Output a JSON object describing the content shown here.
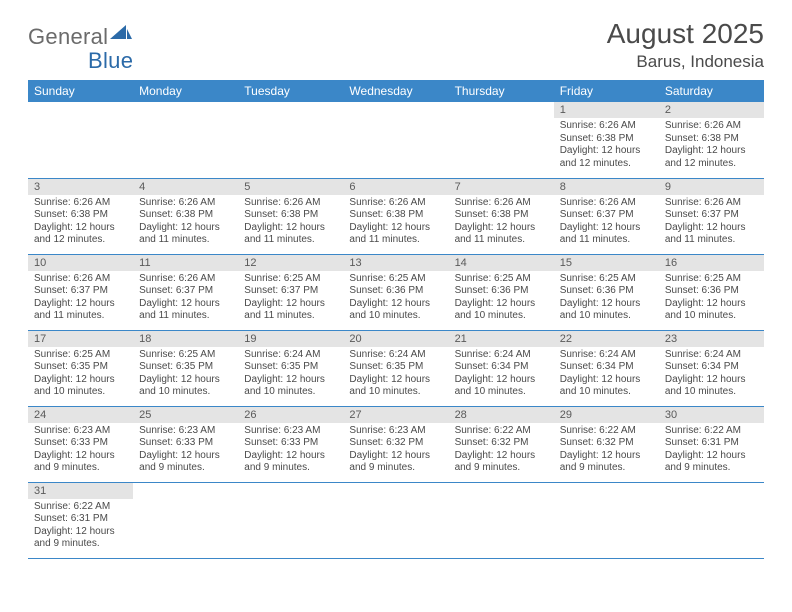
{
  "logo": {
    "part1": "General",
    "part2": "Blue"
  },
  "title": "August 2025",
  "location": "Barus, Indonesia",
  "colors": {
    "header_bg": "#3b87c8",
    "header_text": "#ffffff",
    "daynum_bg": "#e4e4e4",
    "row_border": "#3b87c8",
    "body_text": "#4a4a4a",
    "logo_gray": "#6b6b6b",
    "logo_blue": "#2b6aa8"
  },
  "weekdays": [
    "Sunday",
    "Monday",
    "Tuesday",
    "Wednesday",
    "Thursday",
    "Friday",
    "Saturday"
  ],
  "startWeekday": 5,
  "daysInMonth": 31,
  "days": {
    "1": {
      "sunrise": "6:26 AM",
      "sunset": "6:38 PM",
      "daylight": "12 hours and 12 minutes."
    },
    "2": {
      "sunrise": "6:26 AM",
      "sunset": "6:38 PM",
      "daylight": "12 hours and 12 minutes."
    },
    "3": {
      "sunrise": "6:26 AM",
      "sunset": "6:38 PM",
      "daylight": "12 hours and 12 minutes."
    },
    "4": {
      "sunrise": "6:26 AM",
      "sunset": "6:38 PM",
      "daylight": "12 hours and 11 minutes."
    },
    "5": {
      "sunrise": "6:26 AM",
      "sunset": "6:38 PM",
      "daylight": "12 hours and 11 minutes."
    },
    "6": {
      "sunrise": "6:26 AM",
      "sunset": "6:38 PM",
      "daylight": "12 hours and 11 minutes."
    },
    "7": {
      "sunrise": "6:26 AM",
      "sunset": "6:38 PM",
      "daylight": "12 hours and 11 minutes."
    },
    "8": {
      "sunrise": "6:26 AM",
      "sunset": "6:37 PM",
      "daylight": "12 hours and 11 minutes."
    },
    "9": {
      "sunrise": "6:26 AM",
      "sunset": "6:37 PM",
      "daylight": "12 hours and 11 minutes."
    },
    "10": {
      "sunrise": "6:26 AM",
      "sunset": "6:37 PM",
      "daylight": "12 hours and 11 minutes."
    },
    "11": {
      "sunrise": "6:26 AM",
      "sunset": "6:37 PM",
      "daylight": "12 hours and 11 minutes."
    },
    "12": {
      "sunrise": "6:25 AM",
      "sunset": "6:37 PM",
      "daylight": "12 hours and 11 minutes."
    },
    "13": {
      "sunrise": "6:25 AM",
      "sunset": "6:36 PM",
      "daylight": "12 hours and 10 minutes."
    },
    "14": {
      "sunrise": "6:25 AM",
      "sunset": "6:36 PM",
      "daylight": "12 hours and 10 minutes."
    },
    "15": {
      "sunrise": "6:25 AM",
      "sunset": "6:36 PM",
      "daylight": "12 hours and 10 minutes."
    },
    "16": {
      "sunrise": "6:25 AM",
      "sunset": "6:36 PM",
      "daylight": "12 hours and 10 minutes."
    },
    "17": {
      "sunrise": "6:25 AM",
      "sunset": "6:35 PM",
      "daylight": "12 hours and 10 minutes."
    },
    "18": {
      "sunrise": "6:25 AM",
      "sunset": "6:35 PM",
      "daylight": "12 hours and 10 minutes."
    },
    "19": {
      "sunrise": "6:24 AM",
      "sunset": "6:35 PM",
      "daylight": "12 hours and 10 minutes."
    },
    "20": {
      "sunrise": "6:24 AM",
      "sunset": "6:35 PM",
      "daylight": "12 hours and 10 minutes."
    },
    "21": {
      "sunrise": "6:24 AM",
      "sunset": "6:34 PM",
      "daylight": "12 hours and 10 minutes."
    },
    "22": {
      "sunrise": "6:24 AM",
      "sunset": "6:34 PM",
      "daylight": "12 hours and 10 minutes."
    },
    "23": {
      "sunrise": "6:24 AM",
      "sunset": "6:34 PM",
      "daylight": "12 hours and 10 minutes."
    },
    "24": {
      "sunrise": "6:23 AM",
      "sunset": "6:33 PM",
      "daylight": "12 hours and 9 minutes."
    },
    "25": {
      "sunrise": "6:23 AM",
      "sunset": "6:33 PM",
      "daylight": "12 hours and 9 minutes."
    },
    "26": {
      "sunrise": "6:23 AM",
      "sunset": "6:33 PM",
      "daylight": "12 hours and 9 minutes."
    },
    "27": {
      "sunrise": "6:23 AM",
      "sunset": "6:32 PM",
      "daylight": "12 hours and 9 minutes."
    },
    "28": {
      "sunrise": "6:22 AM",
      "sunset": "6:32 PM",
      "daylight": "12 hours and 9 minutes."
    },
    "29": {
      "sunrise": "6:22 AM",
      "sunset": "6:32 PM",
      "daylight": "12 hours and 9 minutes."
    },
    "30": {
      "sunrise": "6:22 AM",
      "sunset": "6:31 PM",
      "daylight": "12 hours and 9 minutes."
    },
    "31": {
      "sunrise": "6:22 AM",
      "sunset": "6:31 PM",
      "daylight": "12 hours and 9 minutes."
    }
  },
  "labels": {
    "sunrise": "Sunrise:",
    "sunset": "Sunset:",
    "daylight": "Daylight:"
  }
}
